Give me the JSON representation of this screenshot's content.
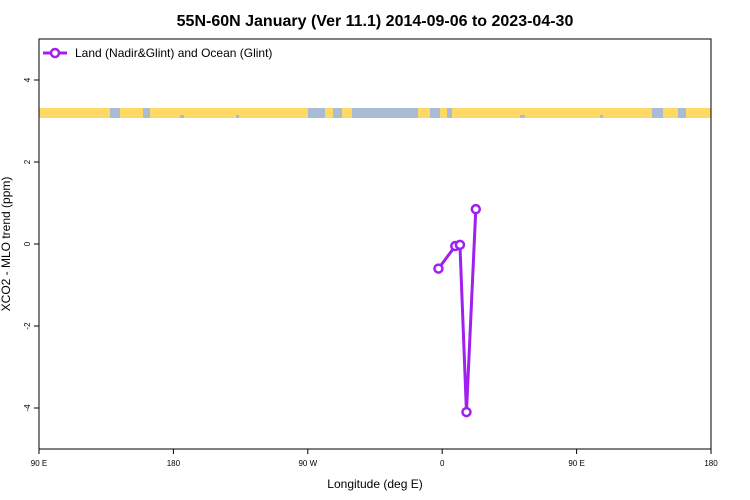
{
  "chart_data": {
    "type": "line",
    "title": "55N-60N January (Ver 11.1)   2014-09-06 to 2023-04-30",
    "xlabel": "Longitude (deg E)",
    "ylabel": "XCO2 - MLO trend (ppm)",
    "xlim": [
      90,
      450
    ],
    "ylim": [
      -5,
      5
    ],
    "x_ticks": [
      {
        "value": 90,
        "label": "90 E"
      },
      {
        "value": 162,
        "label": "180"
      },
      {
        "value": 234,
        "label": "90 W"
      },
      {
        "value": 306,
        "label": "0"
      },
      {
        "value": 378,
        "label": "90 E"
      },
      {
        "value": 450,
        "label": "180"
      }
    ],
    "y_ticks": [
      {
        "value": -4,
        "label": "-4"
      },
      {
        "value": -2,
        "label": "-2"
      },
      {
        "value": 0,
        "label": "0"
      },
      {
        "value": 2,
        "label": "2"
      },
      {
        "value": 4,
        "label": "4"
      }
    ],
    "grid": false,
    "legend_position": "top-left",
    "series": [
      {
        "name": "Land (Nadir&Glint) and Ocean (Glint)",
        "color": "#a020f0",
        "points": [
          {
            "x": 304.0,
            "y": -0.6
          },
          {
            "x": 313.0,
            "y": -0.05
          },
          {
            "x": 315.5,
            "y": -0.02
          },
          {
            "x": 319.0,
            "y": -4.1
          },
          {
            "x": 324.0,
            "y": 0.85
          }
        ]
      }
    ],
    "colors": {
      "land": "#ffd966",
      "ocean": "#a8bcd6",
      "series": "#a020f0"
    }
  }
}
